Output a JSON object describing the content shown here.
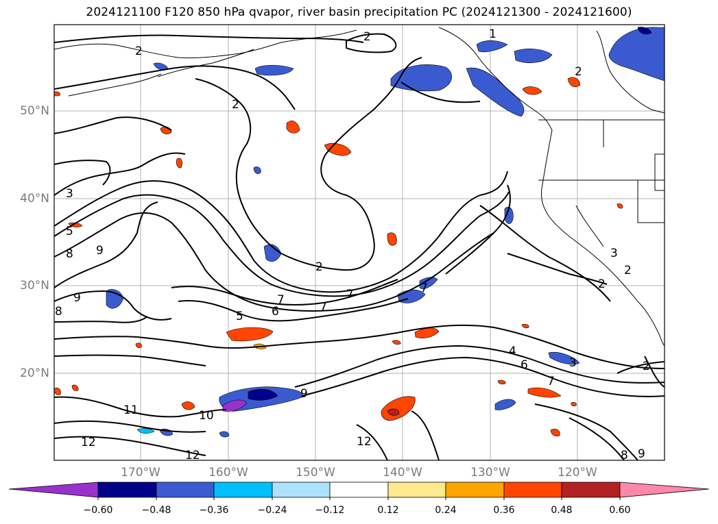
{
  "title": "2024121100 F120 850 hPa qvapor, river basin precipitation PC (2024121300 - 2024121600)",
  "latitude_labels": [
    "50°N",
    "40°N",
    "30°N",
    "20°N"
  ],
  "longitude_labels": [
    "170°W",
    "160°W",
    "150°W",
    "140°W",
    "130°W",
    "120°W"
  ],
  "colorbar": {
    "tick_labels": [
      "−0.60",
      "−0.48",
      "−0.36",
      "−0.24",
      "−0.12",
      "0.12",
      "0.24",
      "0.36",
      "0.48",
      "0.60"
    ],
    "colors": [
      "#9932cc",
      "#00008b",
      "#3a5bd0",
      "#00bfff",
      "#ade2ff",
      "#ffffff",
      "#ffe98f",
      "#ffa500",
      "#ff4500",
      "#b22222",
      "#ff88aa"
    ]
  },
  "contour_labels": [
    "1",
    "2",
    "2",
    "2",
    "2",
    "2",
    "3",
    "5",
    "8",
    "9",
    "9",
    "8",
    "5",
    "6",
    "7",
    "7",
    "7",
    "7",
    "4",
    "6",
    "7",
    "3",
    "2",
    "9",
    "10",
    "11",
    "12",
    "12",
    "12",
    "8",
    "9",
    "2",
    "3",
    "2"
  ],
  "colors": {
    "grid": "#b0b0b0",
    "contour": "#000000",
    "neg_fill": "#3a5bd0",
    "pos_fill": "#ff4500"
  }
}
